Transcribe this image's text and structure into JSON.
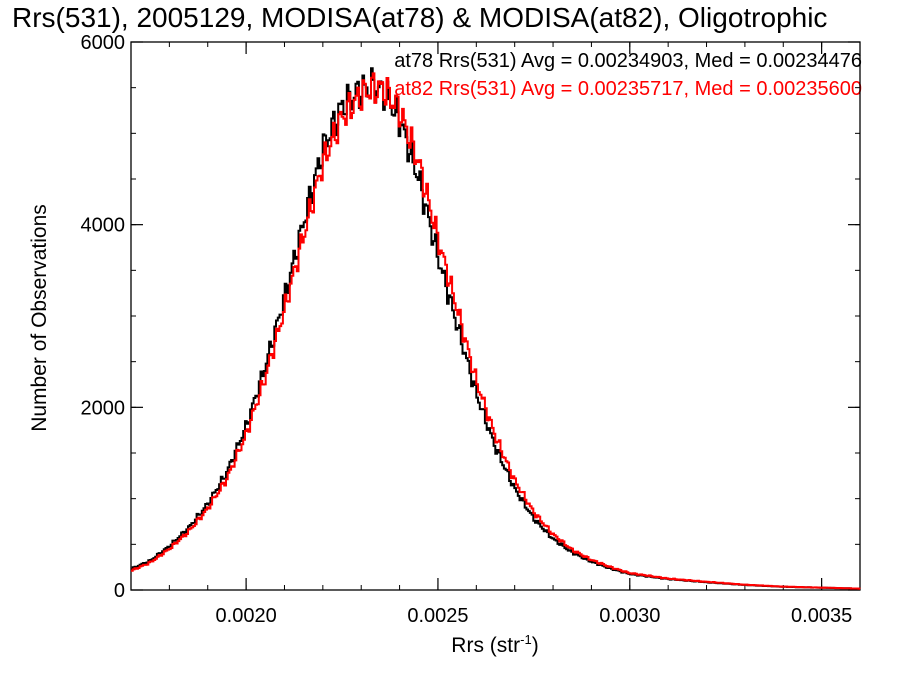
{
  "title": "Rrs(531), 2005129, MODISA(at78) & MODISA(at82), Oligotrophic",
  "stats": {
    "at78": "at78 Rrs(531) Avg = 0.00234903, Med = 0.00234476",
    "at82": "at82 Rrs(531) Avg = 0.00235717, Med = 0.00235600"
  },
  "colors": {
    "at78": "#000000",
    "at82": "#ff0000"
  },
  "chart_data": {
    "type": "line",
    "title": "Rrs(531), 2005129, MODISA(at78) & MODISA(at82), Oligotrophic",
    "xlabel_main": "Rrs (str",
    "xlabel_sup": "-1",
    "xlabel_end": ")",
    "ylabel": "Number of Observations",
    "xlim": [
      0.0017,
      0.0036
    ],
    "ylim": [
      0,
      6000
    ],
    "xticks": [
      0.002,
      0.0025,
      0.003,
      0.0035
    ],
    "xtick_labels": [
      "0.0020",
      "0.0025",
      "0.0030",
      "0.0035"
    ],
    "yticks": [
      0,
      2000,
      4000,
      6000
    ],
    "ytick_labels": [
      "0",
      "2000",
      "4000",
      "6000"
    ],
    "step_style": "histogram",
    "series": [
      {
        "name": "at78",
        "color": "#000000",
        "x": [
          0.0017,
          0.00175,
          0.0018,
          0.00185,
          0.0019,
          0.00195,
          0.002,
          0.00205,
          0.0021,
          0.00215,
          0.0022,
          0.00225,
          0.0023,
          0.00233,
          0.00236,
          0.0024,
          0.00245,
          0.0025,
          0.00255,
          0.0026,
          0.00265,
          0.0027,
          0.00275,
          0.0028,
          0.00285,
          0.0029,
          0.00295,
          0.003,
          0.0031,
          0.0032,
          0.0033,
          0.0034,
          0.0035,
          0.0036
        ],
        "y": [
          230,
          320,
          480,
          680,
          940,
          1290,
          1790,
          2450,
          3200,
          4030,
          4830,
          5300,
          5480,
          5520,
          5450,
          5150,
          4500,
          3650,
          2900,
          2150,
          1560,
          1110,
          780,
          560,
          410,
          310,
          235,
          175,
          120,
          85,
          55,
          35,
          25,
          15
        ]
      },
      {
        "name": "at82",
        "color": "#ff0000",
        "x": [
          0.0017,
          0.00175,
          0.0018,
          0.00185,
          0.0019,
          0.00195,
          0.002,
          0.00205,
          0.0021,
          0.00215,
          0.0022,
          0.00225,
          0.0023,
          0.00233,
          0.00236,
          0.0024,
          0.00245,
          0.0025,
          0.00255,
          0.0026,
          0.00265,
          0.0027,
          0.00275,
          0.0028,
          0.00285,
          0.0029,
          0.00295,
          0.003,
          0.0031,
          0.0032,
          0.0033,
          0.0034,
          0.0035,
          0.0036
        ],
        "y": [
          210,
          300,
          450,
          640,
          890,
          1220,
          1700,
          2330,
          3070,
          3880,
          4680,
          5180,
          5420,
          5500,
          5480,
          5250,
          4680,
          3850,
          3080,
          2290,
          1680,
          1200,
          850,
          610,
          440,
          330,
          250,
          185,
          125,
          90,
          58,
          37,
          26,
          15
        ]
      }
    ]
  }
}
